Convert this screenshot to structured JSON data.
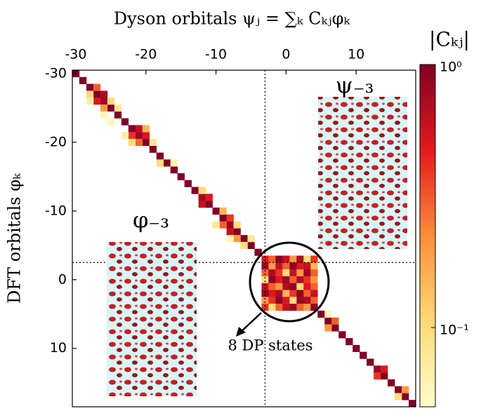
{
  "chart_data": {
    "type": "heatmap",
    "title": "Dyson orbitals ψⱼ = ∑ₖ Cₖⱼφₖ",
    "y_label": "DFT orbitals φₖ",
    "colorbar_label": "|Cₖⱼ|",
    "annotations": [
      "ψ₋₃",
      "φ₋₃",
      "8 DP states"
    ],
    "xlim": [
      -30.5,
      18.5
    ],
    "ylim": [
      -30.5,
      18.5
    ],
    "xticks": [
      -30,
      -20,
      -10,
      0,
      10
    ],
    "yticks": [
      -30,
      -20,
      -10,
      0,
      10
    ],
    "clim": [
      0.05,
      1
    ],
    "color_scale": "log",
    "cticks": [
      {
        "value": 1,
        "label": "10⁰"
      },
      {
        "value": 0.1,
        "label": "10⁻¹"
      }
    ],
    "colormap": [
      "#ffffcc",
      "#fed976",
      "#fd8d3c",
      "#e31a1c",
      "#800026"
    ],
    "reference_lines": {
      "x": -3,
      "y": -2.5
    },
    "cells": [
      [
        -30,
        -30,
        1
      ],
      [
        -29,
        -29,
        1
      ],
      [
        -28,
        -28,
        1
      ],
      [
        -27,
        -27,
        1
      ],
      [
        -26,
        -26,
        0.8
      ],
      [
        -25,
        -25,
        1
      ],
      [
        -24,
        -24,
        1
      ],
      [
        -23,
        -23,
        1
      ],
      [
        -22,
        -22,
        1
      ],
      [
        -21,
        -21,
        0.8
      ],
      [
        -20,
        -20,
        1
      ],
      [
        -19,
        -19,
        1
      ],
      [
        -18,
        -18,
        1
      ],
      [
        -17,
        -17,
        1
      ],
      [
        -16,
        -16,
        1
      ],
      [
        -15,
        -15,
        1
      ],
      [
        -14,
        -14,
        1
      ],
      [
        -13,
        -13,
        1
      ],
      [
        -12,
        -12,
        0.8
      ],
      [
        -11,
        -11,
        1
      ],
      [
        -10,
        -10,
        1
      ],
      [
        -9,
        -9,
        1
      ],
      [
        -8,
        -8,
        0.8
      ],
      [
        -7,
        -7,
        1
      ],
      [
        -6,
        -6,
        1
      ],
      [
        -5,
        -5,
        1
      ],
      [
        -4,
        -4,
        1
      ],
      [
        5,
        5,
        1
      ],
      [
        6,
        6,
        1
      ],
      [
        7,
        7,
        1
      ],
      [
        8,
        8,
        1
      ],
      [
        9,
        9,
        1
      ],
      [
        10,
        10,
        1
      ],
      [
        11,
        11,
        1
      ],
      [
        12,
        12,
        1
      ],
      [
        13,
        13,
        0.8
      ],
      [
        14,
        14,
        1
      ],
      [
        15,
        15,
        1
      ],
      [
        16,
        16,
        1
      ],
      [
        17,
        17,
        1
      ],
      [
        18,
        18,
        1
      ],
      [
        -28,
        -27,
        0.1
      ],
      [
        -27,
        -28,
        0.3
      ],
      [
        -27,
        -26,
        0.5
      ],
      [
        -26,
        -27,
        0.7
      ],
      [
        -26,
        -25,
        0.2
      ],
      [
        -25,
        -26,
        0.1
      ],
      [
        -28,
        -26,
        0.07
      ],
      [
        -24,
        -25,
        0.08
      ],
      [
        -25,
        -23,
        0.06
      ],
      [
        -26,
        -24,
        0.06
      ],
      [
        -22,
        -21,
        0.4
      ],
      [
        -21,
        -22,
        0.6
      ],
      [
        -21,
        -20,
        0.3
      ],
      [
        -20,
        -21,
        0.5
      ],
      [
        -22,
        -20,
        0.1
      ],
      [
        -20,
        -22,
        0.15
      ],
      [
        -19,
        -20,
        0.08
      ],
      [
        -23,
        -21,
        0.07
      ],
      [
        -18,
        -17,
        0.1
      ],
      [
        -16,
        -17,
        0.06
      ],
      [
        -12,
        -11,
        0.6
      ],
      [
        -11,
        -12,
        0.5
      ],
      [
        -12,
        -13,
        0.1
      ],
      [
        -9,
        -8,
        0.3
      ],
      [
        -8,
        -9,
        0.4
      ],
      [
        -9,
        -10,
        0.15
      ],
      [
        -7,
        -8,
        0.1
      ],
      [
        -8,
        -7,
        0.6
      ],
      [
        -7,
        -6,
        0.2
      ],
      [
        -10,
        -8,
        0.08
      ],
      [
        -8,
        -6,
        0.06
      ],
      [
        -6,
        -5,
        0.1
      ],
      [
        -5,
        -6,
        0.08
      ],
      [
        6,
        7,
        0.2
      ],
      [
        7,
        6,
        0.3
      ],
      [
        6,
        5,
        0.06
      ],
      [
        13,
        14,
        0.4
      ],
      [
        14,
        13,
        0.5
      ],
      [
        16,
        17,
        0.1
      ],
      [
        17,
        16,
        0.2
      ],
      [
        -3,
        -3,
        0.5
      ],
      [
        -2,
        -3,
        0.3
      ],
      [
        -1,
        -3,
        0.9
      ],
      [
        0,
        -3,
        0.6
      ],
      [
        1,
        -3,
        0.2
      ],
      [
        2,
        -3,
        0.7
      ],
      [
        3,
        -3,
        0.1
      ],
      [
        4,
        -3,
        0.4
      ],
      [
        -3,
        -2,
        0.8
      ],
      [
        -2,
        -2,
        0.2
      ],
      [
        -1,
        -2,
        0.6
      ],
      [
        0,
        -2,
        0.3
      ],
      [
        1,
        -2,
        0.9
      ],
      [
        2,
        -2,
        0.5
      ],
      [
        3,
        -2,
        0.6
      ],
      [
        4,
        -2,
        0.15
      ],
      [
        -3,
        -1,
        0.3
      ],
      [
        -2,
        -1,
        0.7
      ],
      [
        -1,
        -1,
        0.4
      ],
      [
        0,
        -1,
        0.1
      ],
      [
        1,
        -1,
        0.6
      ],
      [
        2,
        -1,
        0.2
      ],
      [
        3,
        -1,
        0.8
      ],
      [
        4,
        -1,
        0.3
      ],
      [
        -3,
        0,
        0.1
      ],
      [
        -2,
        0,
        0.9
      ],
      [
        -1,
        0,
        0.5
      ],
      [
        0,
        0,
        0.8
      ],
      [
        1,
        0,
        0.3
      ],
      [
        2,
        0,
        0.7
      ],
      [
        3,
        0,
        0.4
      ],
      [
        4,
        0,
        0.2
      ],
      [
        -3,
        1,
        0.6
      ],
      [
        -2,
        1,
        0.3
      ],
      [
        -1,
        1,
        0.2
      ],
      [
        0,
        1,
        0.7
      ],
      [
        1,
        1,
        0.9
      ],
      [
        2,
        1,
        0.1
      ],
      [
        3,
        1,
        0.5
      ],
      [
        4,
        1,
        0.3
      ],
      [
        -3,
        2,
        0.8
      ],
      [
        -2,
        2,
        0.5
      ],
      [
        -1,
        2,
        0.7
      ],
      [
        0,
        2,
        0.15
      ],
      [
        1,
        2,
        0.4
      ],
      [
        2,
        2,
        0.9
      ],
      [
        3,
        2,
        0.3
      ],
      [
        4,
        2,
        0.6
      ],
      [
        -3,
        3,
        0.2
      ],
      [
        -2,
        3,
        0.4
      ],
      [
        -1,
        3,
        0.9
      ],
      [
        0,
        3,
        0.5
      ],
      [
        1,
        3,
        0.1
      ],
      [
        2,
        3,
        0.8
      ],
      [
        3,
        3,
        0.7
      ],
      [
        4,
        3,
        0.3
      ],
      [
        -3,
        4,
        0.4
      ],
      [
        -2,
        4,
        0.1
      ],
      [
        -1,
        4,
        0.3
      ],
      [
        0,
        4,
        0.6
      ],
      [
        1,
        4,
        0.8
      ],
      [
        2,
        4,
        0.3
      ],
      [
        3,
        4,
        0.2
      ],
      [
        4,
        4,
        0.9
      ]
    ]
  }
}
